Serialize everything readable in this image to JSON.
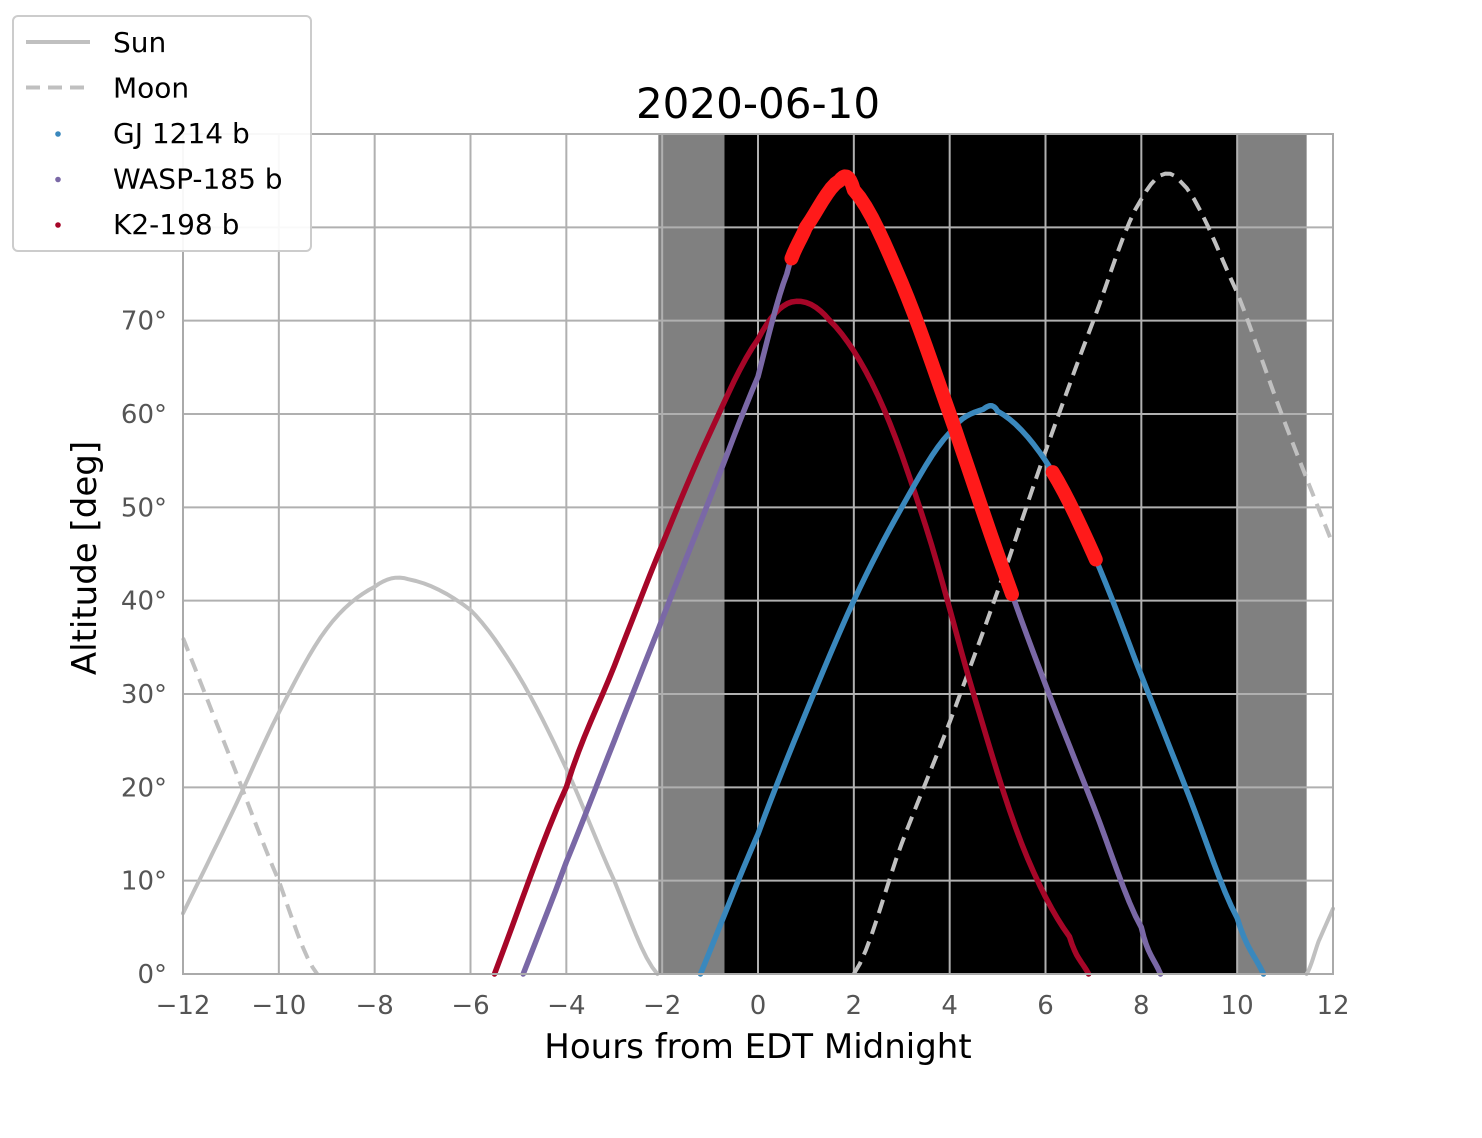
{
  "chart_data": {
    "type": "line",
    "title": "2020-06-10",
    "xlabel": "Hours from EDT Midnight",
    "ylabel": "Altitude [deg]",
    "xlim": [
      -12,
      12
    ],
    "ylim": [
      0,
      90
    ],
    "x_ticks": [
      -12,
      -10,
      -8,
      -6,
      -4,
      -2,
      0,
      2,
      4,
      6,
      8,
      10,
      12
    ],
    "x_tick_labels": [
      "−12",
      "−10",
      "−8",
      "−6",
      "−4",
      "−2",
      "0",
      "2",
      "4",
      "6",
      "8",
      "10",
      "12"
    ],
    "y_ticks": [
      0,
      10,
      20,
      30,
      40,
      50,
      60,
      70,
      80,
      90
    ],
    "y_tick_labels": [
      "0°",
      "10°",
      "20°",
      "30°",
      "40°",
      "50°",
      "60°",
      "70°",
      "",
      ""
    ],
    "grid": true,
    "legend_position": "top-left (outside)",
    "twilight_bands": [
      {
        "kind": "twilight",
        "x_start": -2.08,
        "x_end": -0.7,
        "color": "#808080"
      },
      {
        "kind": "night",
        "x_start": -0.7,
        "x_end": 10.0,
        "color": "#000000"
      },
      {
        "kind": "twilight",
        "x_start": 10.0,
        "x_end": 11.45,
        "color": "#808080"
      }
    ],
    "series": [
      {
        "name": "Sun",
        "style": "solid",
        "color": "#c0c0c0",
        "x": [
          -12,
          -11,
          -10,
          -9,
          -8,
          -7.3,
          -6,
          -5,
          -4,
          -3,
          -2.1,
          11.45,
          11.7,
          12
        ],
        "y": [
          6.5,
          17,
          28,
          37,
          41.5,
          42.3,
          39,
          32,
          22,
          10,
          0,
          0,
          3.5,
          7
        ]
      },
      {
        "name": "Moon",
        "style": "dashed",
        "color": "#c0c0c0",
        "x": [
          -12,
          -11,
          -10,
          -9.2,
          2.0,
          3,
          4,
          5,
          6,
          7,
          8,
          8.8,
          10,
          11,
          12
        ],
        "y": [
          36,
          23,
          10,
          0,
          0,
          14,
          27,
          41,
          56,
          70,
          83,
          85,
          73,
          59,
          46
        ]
      },
      {
        "name": "GJ 1214 b",
        "style": "dot",
        "color": "#3a88bd",
        "x": [
          -1.2,
          0,
          1,
          2,
          3,
          4,
          4.7,
          5,
          6,
          7,
          8,
          9,
          10,
          10.55
        ],
        "y": [
          0,
          15,
          28,
          40,
          50,
          58,
          60.5,
          60.3,
          55,
          45,
          32,
          19,
          6,
          0
        ]
      },
      {
        "name": "WASP-185 b",
        "style": "dot",
        "color": "#7a68a6",
        "x": [
          -4.9,
          -4,
          -3,
          -2,
          -1,
          0,
          0.6,
          1,
          1.7,
          2,
          3,
          4,
          5,
          6,
          7,
          8,
          8.4
        ],
        "y": [
          0,
          12,
          25,
          38,
          51,
          64,
          75,
          80,
          85,
          84,
          74,
          60,
          45,
          31,
          18,
          5,
          0
        ]
      },
      {
        "name": "K2-198 b",
        "style": "dot",
        "color": "#a60628",
        "x": [
          -5.5,
          -4,
          -3,
          -2,
          -1,
          0,
          0.7,
          1.5,
          2.5,
          3.5,
          4.5,
          5.5,
          6.5,
          6.9
        ],
        "y": [
          0,
          20,
          33,
          46,
          58,
          68,
          72,
          70,
          62,
          48,
          30,
          14,
          4,
          0
        ]
      }
    ],
    "highlights": [
      {
        "target": "WASP-185 b",
        "color": "#ff1a1a",
        "x_start": 0.7,
        "x_end": 5.3
      },
      {
        "target": "GJ 1214 b",
        "color": "#ff1a1a",
        "x_start": 6.15,
        "x_end": 7.05
      }
    ]
  }
}
